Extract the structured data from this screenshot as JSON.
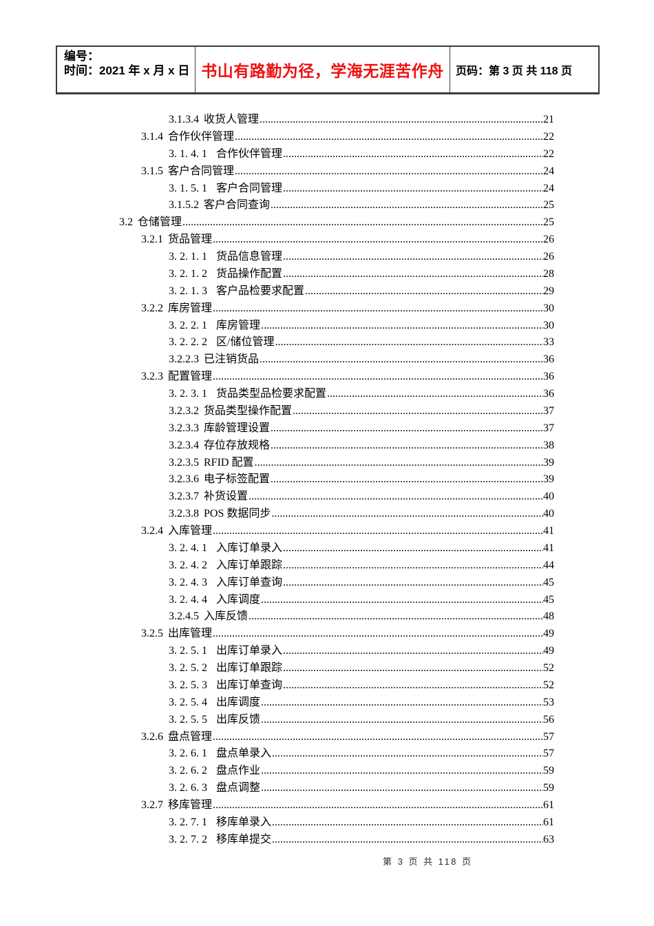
{
  "header": {
    "doc_number_label": "编号：",
    "doc_date_label": "时间：2021 年 x 月 x 日",
    "motto": "书山有路勤为径，学海无涯苦作舟",
    "page_info": "页码：第 3 页  共 118 页"
  },
  "toc": {
    "entries": [
      {
        "num": "3.1.3.4",
        "title": "收货人管理",
        "page": "21",
        "level": 3
      },
      {
        "num": "3.1.4",
        "title": "合作伙伴管理",
        "page": "22",
        "level": 2
      },
      {
        "num": "3. 1. 4. 1",
        "title": "合作伙伴管理",
        "page": "22",
        "level": 3
      },
      {
        "num": "3.1.5",
        "title": "客户合同管理",
        "page": "24",
        "level": 2
      },
      {
        "num": "3. 1. 5. 1",
        "title": "客户合同管理",
        "page": "24",
        "level": 3
      },
      {
        "num": "3.1.5.2",
        "title": "客户合同查询",
        "page": "25",
        "level": 3
      },
      {
        "num": "3.2",
        "title": "仓储管理",
        "page": "25",
        "level": 1
      },
      {
        "num": "3.2.1",
        "title": "货品管理",
        "page": "26",
        "level": 2
      },
      {
        "num": "3. 2. 1. 1",
        "title": "货品信息管理",
        "page": "26",
        "level": 3
      },
      {
        "num": "3. 2. 1. 2",
        "title": "货品操作配置",
        "page": "28",
        "level": 3
      },
      {
        "num": "3. 2. 1. 3",
        "title": "客户品检要求配置",
        "page": "29",
        "level": 3
      },
      {
        "num": "3.2.2",
        "title": "库房管理",
        "page": "30",
        "level": 2
      },
      {
        "num": "3. 2. 2. 1",
        "title": "库房管理",
        "page": "30",
        "level": 3
      },
      {
        "num": "3. 2. 2. 2",
        "title": "区/储位管理",
        "page": "33",
        "level": 3
      },
      {
        "num": "3.2.2.3",
        "title": "已注销货品",
        "page": "36",
        "level": 3
      },
      {
        "num": "3.2.3",
        "title": "配置管理",
        "page": "36",
        "level": 2
      },
      {
        "num": "3. 2. 3. 1",
        "title": "货品类型品检要求配置",
        "page": "36",
        "level": 3
      },
      {
        "num": "3.2.3.2",
        "title": "货品类型操作配置",
        "page": "37",
        "level": 3
      },
      {
        "num": "3.2.3.3",
        "title": "库龄管理设置",
        "page": "37",
        "level": 3
      },
      {
        "num": "3.2.3.4",
        "title": "存位存放规格",
        "page": "38",
        "level": 3
      },
      {
        "num": "3.2.3.5",
        "title": "RFID 配置",
        "page": "39",
        "level": 3
      },
      {
        "num": "3.2.3.6",
        "title": "电子标签配置",
        "page": "39",
        "level": 3
      },
      {
        "num": "3.2.3.7",
        "title": "补货设置",
        "page": "40",
        "level": 3
      },
      {
        "num": "3.2.3.8",
        "title": "POS 数据同步",
        "page": "40",
        "level": 3
      },
      {
        "num": "3.2.4",
        "title": "入库管理",
        "page": "41",
        "level": 2
      },
      {
        "num": "3. 2. 4. 1",
        "title": "入库订单录入",
        "page": "41",
        "level": 3
      },
      {
        "num": "3. 2. 4. 2",
        "title": "入库订单跟踪",
        "page": "44",
        "level": 3
      },
      {
        "num": "3. 2. 4. 3",
        "title": "入库订单查询",
        "page": "45",
        "level": 3
      },
      {
        "num": "3. 2. 4. 4",
        "title": "入库调度",
        "page": "45",
        "level": 3
      },
      {
        "num": "3.2.4.5",
        "title": "入库反馈",
        "page": "48",
        "level": 3
      },
      {
        "num": "3.2.5",
        "title": "出库管理",
        "page": "49",
        "level": 2
      },
      {
        "num": "3. 2. 5. 1",
        "title": "出库订单录入",
        "page": "49",
        "level": 3
      },
      {
        "num": "3. 2. 5. 2",
        "title": "出库订单跟踪",
        "page": "52",
        "level": 3
      },
      {
        "num": "3. 2. 5. 3",
        "title": "出库订单查询",
        "page": "52",
        "level": 3
      },
      {
        "num": "3. 2. 5. 4",
        "title": "出库调度",
        "page": "53",
        "level": 3
      },
      {
        "num": "3. 2. 5. 5",
        "title": "出库反馈",
        "page": "56",
        "level": 3
      },
      {
        "num": "3.2.6",
        "title": "盘点管理",
        "page": "57",
        "level": 2
      },
      {
        "num": "3. 2. 6. 1",
        "title": "盘点单录入",
        "page": "57",
        "level": 3
      },
      {
        "num": "3. 2. 6. 2",
        "title": "盘点作业",
        "page": "59",
        "level": 3
      },
      {
        "num": "3. 2. 6. 3",
        "title": "盘点调整",
        "page": "59",
        "level": 3
      },
      {
        "num": "3.2.7",
        "title": "移库管理",
        "page": "61",
        "level": 2
      },
      {
        "num": "3. 2. 7. 1",
        "title": "移库单录入",
        "page": "61",
        "level": 3
      },
      {
        "num": "3. 2. 7. 2",
        "title": "移库单提交",
        "page": "63",
        "level": 3
      }
    ]
  },
  "footer": {
    "text": "第 3 页 共 118 页"
  },
  "colors": {
    "motto_red": "#ee1010",
    "table_border": "#3c3c3c"
  }
}
